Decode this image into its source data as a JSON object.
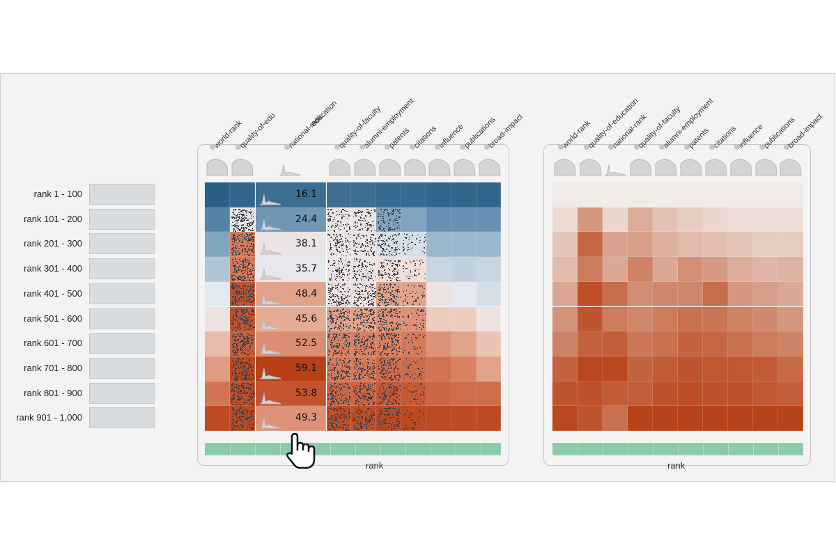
{
  "rows": [
    "rank 1 - 100",
    "rank 101 - 200",
    "rank 201 - 300",
    "rank 301 - 400",
    "rank 401 - 500",
    "rank 501 - 600",
    "rank 601 - 700",
    "rank 701 - 800",
    "rank 801 - 900",
    "rank 901 - 1,000"
  ],
  "left_panel": {
    "columns": [
      "world-rank",
      "quality-of-edu",
      "national-rank",
      "education",
      "quality-of-faculty",
      "alumni-employment",
      "patents",
      "citations",
      "influence",
      "publications",
      "broad-impact"
    ],
    "footer_label": "rank",
    "expanded_column_values": [
      "16.1",
      "24.4",
      "38.1",
      "35.7",
      "48.4",
      "45.6",
      "52.5",
      "59.1",
      "53.8",
      "49.3"
    ]
  },
  "right_panel": {
    "columns": [
      "world-rank",
      "quality-of-education",
      "national-rank",
      "quality-of-faculty",
      "alumni-employment",
      "patents",
      "citations",
      "influence",
      "publications",
      "broad-impact"
    ],
    "footer_label": "rank"
  },
  "colors": {
    "blue_dark": "#2a5f86",
    "orange_dark": "#b8400f",
    "green_bar": "#8ccaa8",
    "panel_bg": "#f3f3f3"
  },
  "icons": [
    "hand-pointer-icon"
  ]
}
